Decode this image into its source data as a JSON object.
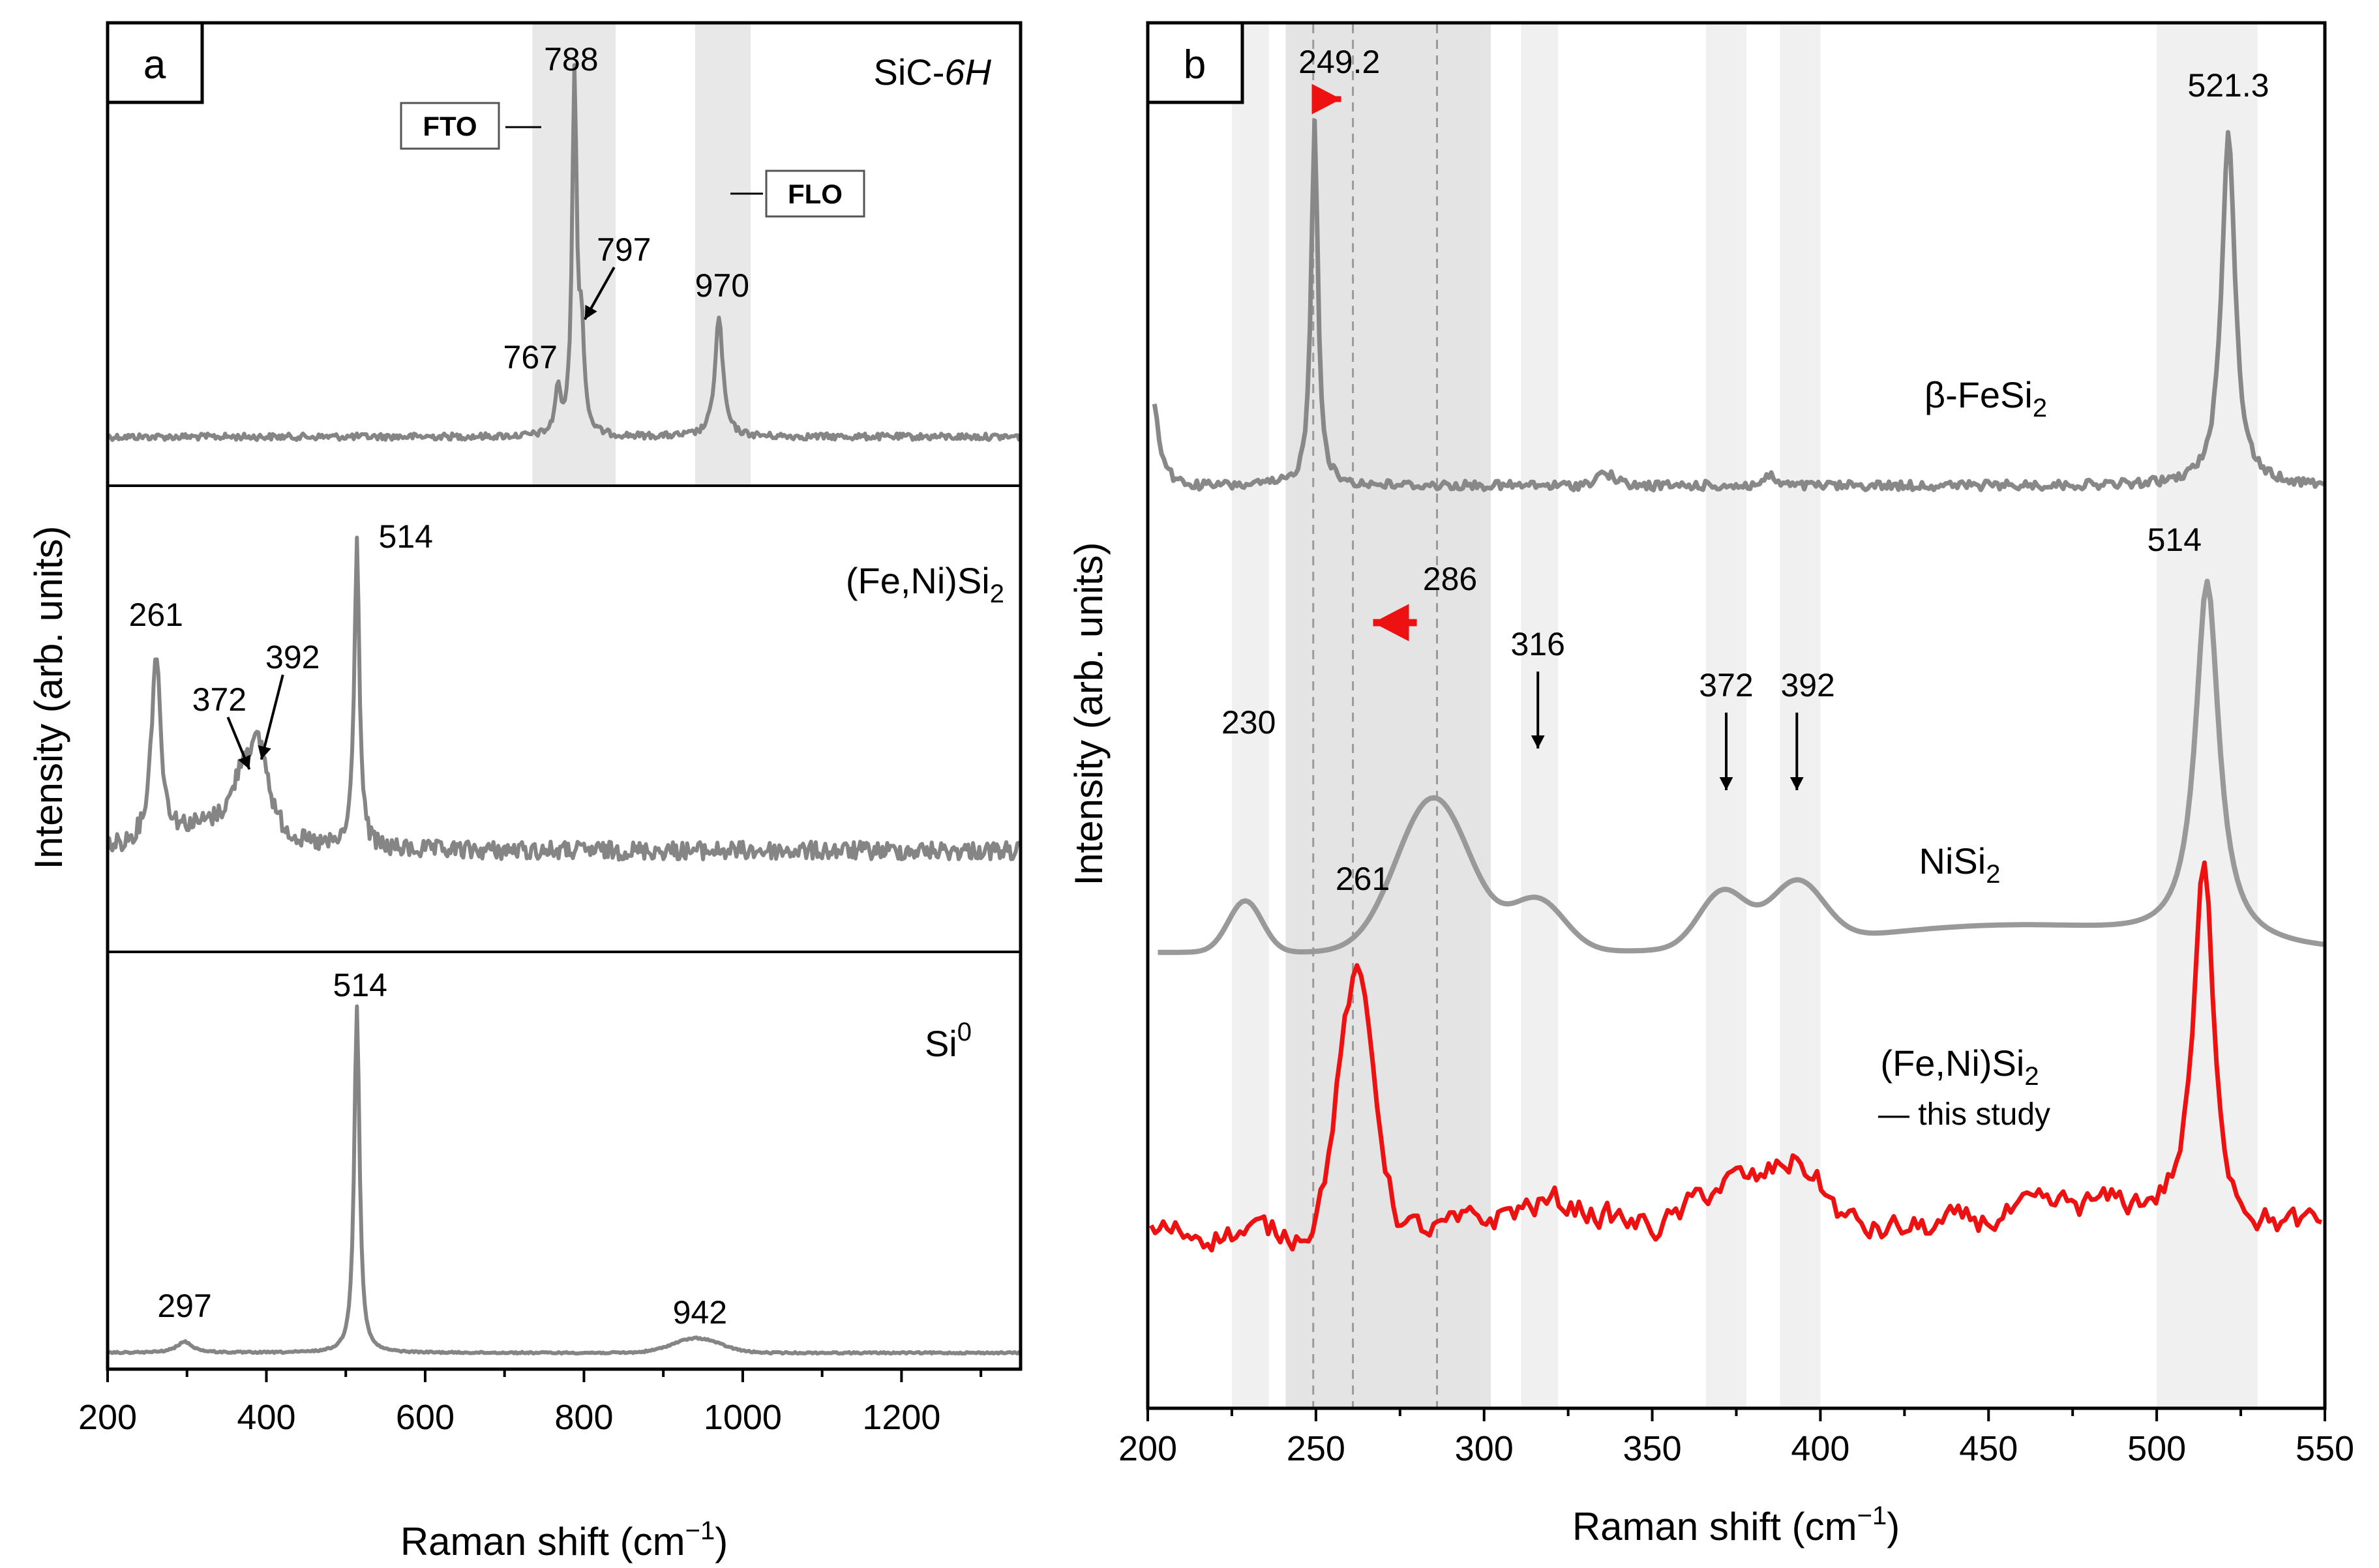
{
  "chart_data": [
    {
      "panel": "a",
      "type": "line",
      "xlabel": "Raman shift (cm",
      "xlabel_sup": "−1",
      "xlabel_close": ")",
      "ylabel": "Intensity (arb. units)",
      "xlim": [
        200,
        1350
      ],
      "xticks": [
        200,
        400,
        600,
        800,
        1000,
        1200
      ],
      "shaded_bands": [
        [
          735,
          840
        ],
        [
          940,
          1010
        ]
      ],
      "mode_labels": [
        {
          "text": "FTO",
          "position": "left of 788 peak"
        },
        {
          "text": "FLO",
          "position": "right of 970 band"
        }
      ],
      "subplots": [
        {
          "sample": "SiC-",
          "sample_suffix": "6H",
          "color": "#858585",
          "peaks": [
            {
              "label": "767",
              "x": 767,
              "h": 0.12
            },
            {
              "label": "788",
              "x": 788,
              "h": 0.95
            },
            {
              "label": "797",
              "x": 797,
              "h": 0.25
            },
            {
              "label": "970",
              "x": 970,
              "h": 0.32
            }
          ]
        },
        {
          "sample": "(Fe,Ni)Si",
          "sample_sub": "2",
          "color": "#858585",
          "peaks": [
            {
              "label": "261",
              "x": 261,
              "h": 0.55
            },
            {
              "label": "372",
              "x": 372,
              "h": 0.17
            },
            {
              "label": "392",
              "x": 392,
              "h": 0.22
            },
            {
              "label": "514",
              "x": 514,
              "h": 0.9
            }
          ]
        },
        {
          "sample": "Si",
          "sample_sup": "0",
          "color": "#858585",
          "peaks": [
            {
              "label": "297",
              "x": 297,
              "h": 0.03
            },
            {
              "label": "514",
              "x": 514,
              "h": 0.95
            },
            {
              "label": "942",
              "x": 942,
              "h": 0.04
            }
          ]
        }
      ]
    },
    {
      "panel": "b",
      "type": "line",
      "xlabel": "Raman shift (cm",
      "xlabel_sup": "−1",
      "xlabel_close": ")",
      "ylabel": "Intensity (arb. units)",
      "xlim": [
        200,
        550
      ],
      "xticks": [
        200,
        250,
        300,
        350,
        400,
        450,
        500,
        550
      ],
      "shaded_bands": [
        [
          225,
          236
        ],
        [
          241,
          302
        ],
        [
          311,
          322
        ],
        [
          366,
          378
        ],
        [
          388,
          400
        ],
        [
          500,
          530
        ]
      ],
      "dashed_lines": [
        249.2,
        261,
        286
      ],
      "series": [
        {
          "name": "β-FeSi",
          "name_sub": "2",
          "color": "#888888",
          "peaks": [
            {
              "label": "249.2",
              "x": 249.2
            },
            {
              "label": "521.3",
              "x": 521.3
            }
          ]
        },
        {
          "name": "NiSi",
          "name_sub": "2",
          "color": "#999999",
          "peaks": [
            {
              "label": "230",
              "x": 230
            },
            {
              "label": "286",
              "x": 286
            },
            {
              "label": "316",
              "x": 316
            },
            {
              "label": "372",
              "x": 372
            },
            {
              "label": "392",
              "x": 392
            },
            {
              "label": "514",
              "x": 514
            }
          ]
        },
        {
          "name": "(Fe,Ni)Si",
          "name_sub": "2",
          "note": "— this study",
          "color": "#ee1111",
          "peaks": [
            {
              "label": "261",
              "x": 261
            },
            {
              "label": "514",
              "x": 514
            }
          ]
        }
      ]
    }
  ]
}
